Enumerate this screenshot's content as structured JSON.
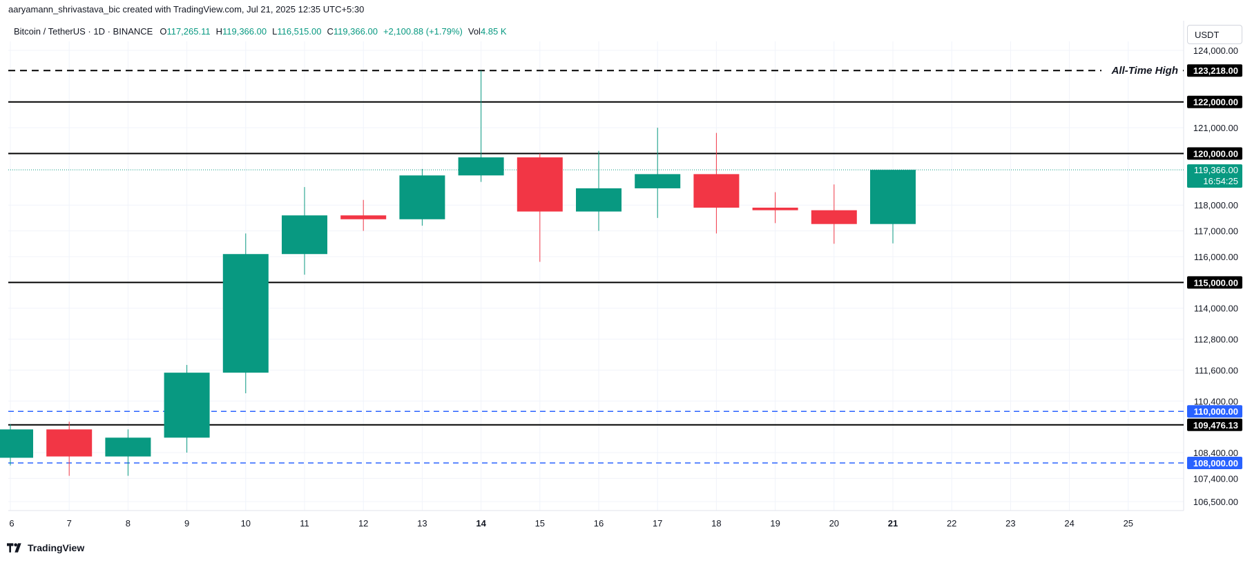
{
  "attribution": "aaryamann_shrivastava_bic created with TradingView.com, Jul 21, 2025 12:35 UTC+5:30",
  "legend": {
    "symbol": "Bitcoin / TetherUS · 1D · BINANCE",
    "o_label": "O",
    "o_value": "117,265.11",
    "h_label": "H",
    "h_value": "119,366.00",
    "l_label": "L",
    "l_value": "116,515.00",
    "c_label": "C",
    "c_value": "119,366.00",
    "change": "+2,100.88 (+1.79%)",
    "vol_label": "Vol",
    "vol_value": "4.85 K"
  },
  "currency": "USDT",
  "footer": {
    "brand": "TradingView"
  },
  "colors": {
    "up": "#089981",
    "down": "#f23645",
    "blue": "#2962ff",
    "grid": "#f0f3fa",
    "line": "#000000"
  },
  "chart_data": {
    "type": "candlestick",
    "title": "Bitcoin / TetherUS · 1D · BINANCE",
    "ylim": [
      106000,
      124800
    ],
    "x_ticks": [
      {
        "label": "6",
        "i": 0
      },
      {
        "label": "7",
        "i": 1
      },
      {
        "label": "8",
        "i": 2
      },
      {
        "label": "9",
        "i": 3
      },
      {
        "label": "10",
        "i": 4
      },
      {
        "label": "11",
        "i": 5
      },
      {
        "label": "12",
        "i": 6
      },
      {
        "label": "13",
        "i": 7
      },
      {
        "label": "14",
        "i": 8,
        "bold": true
      },
      {
        "label": "15",
        "i": 9
      },
      {
        "label": "16",
        "i": 10
      },
      {
        "label": "17",
        "i": 11
      },
      {
        "label": "18",
        "i": 12
      },
      {
        "label": "19",
        "i": 13
      },
      {
        "label": "20",
        "i": 14
      },
      {
        "label": "21",
        "i": 15,
        "bold": true
      },
      {
        "label": "22",
        "i": 16
      },
      {
        "label": "23",
        "i": 17
      },
      {
        "label": "24",
        "i": 18
      },
      {
        "label": "25",
        "i": 19
      }
    ],
    "y_ticks": [
      "124,000.00",
      "121,000.00",
      "118,000.00",
      "117,000.00",
      "116,000.00",
      "114,000.00",
      "112,800.00",
      "111,600.00",
      "110,400.00",
      "108,400.00",
      "107,400.00",
      "106,500.00"
    ],
    "y_tick_values": [
      124000,
      121000,
      118000,
      117000,
      116000,
      114000,
      112800,
      111600,
      110400,
      108400,
      107400,
      106500
    ],
    "candles": [
      {
        "date": "6",
        "o": 108200,
        "h": 109500,
        "l": 107900,
        "c": 109300
      },
      {
        "date": "7",
        "o": 109300,
        "h": 109600,
        "l": 107500,
        "c": 108250
      },
      {
        "date": "8",
        "o": 108250,
        "h": 109300,
        "l": 107500,
        "c": 108980
      },
      {
        "date": "9",
        "o": 108980,
        "h": 111800,
        "l": 108400,
        "c": 111500
      },
      {
        "date": "10",
        "o": 111500,
        "h": 116900,
        "l": 110700,
        "c": 116100
      },
      {
        "date": "11",
        "o": 116100,
        "h": 118700,
        "l": 115300,
        "c": 117600
      },
      {
        "date": "12",
        "o": 117600,
        "h": 118200,
        "l": 117000,
        "c": 117450
      },
      {
        "date": "13",
        "o": 117450,
        "h": 119400,
        "l": 117200,
        "c": 119150
      },
      {
        "date": "14",
        "o": 119150,
        "h": 123218,
        "l": 118900,
        "c": 119850
      },
      {
        "date": "15",
        "o": 119850,
        "h": 120000,
        "l": 115800,
        "c": 117750
      },
      {
        "date": "16",
        "o": 117750,
        "h": 120100,
        "l": 117000,
        "c": 118650
      },
      {
        "date": "17",
        "o": 118650,
        "h": 121000,
        "l": 117500,
        "c": 119200
      },
      {
        "date": "18",
        "o": 119200,
        "h": 120800,
        "l": 116900,
        "c": 117900
      },
      {
        "date": "19",
        "o": 117900,
        "h": 118500,
        "l": 117300,
        "c": 117800
      },
      {
        "date": "20",
        "o": 117800,
        "h": 118800,
        "l": 116500,
        "c": 117265.11
      },
      {
        "date": "21",
        "o": 117265.11,
        "h": 119366,
        "l": 116515,
        "c": 119366
      }
    ],
    "hlines": [
      {
        "value": 123218,
        "label": "123,218.00",
        "style": "dashed",
        "color": "#000000",
        "annotation": "All-Time High"
      },
      {
        "value": 122000,
        "label": "122,000.00",
        "style": "solid",
        "color": "#000000"
      },
      {
        "value": 120000,
        "label": "120,000.00",
        "style": "solid",
        "color": "#000000"
      },
      {
        "value": 115000,
        "label": "115,000.00",
        "style": "solid",
        "color": "#000000"
      },
      {
        "value": 110000,
        "label": "110,000.00",
        "style": "dashed",
        "color": "#2962ff"
      },
      {
        "value": 109476.13,
        "label": "109,476.13",
        "style": "solid",
        "color": "#000000"
      },
      {
        "value": 108000,
        "label": "108,000.00",
        "style": "dashed",
        "color": "#2962ff"
      }
    ],
    "last_price": {
      "value": 119366,
      "label": "119,366.00",
      "countdown": "16:54:25"
    }
  }
}
